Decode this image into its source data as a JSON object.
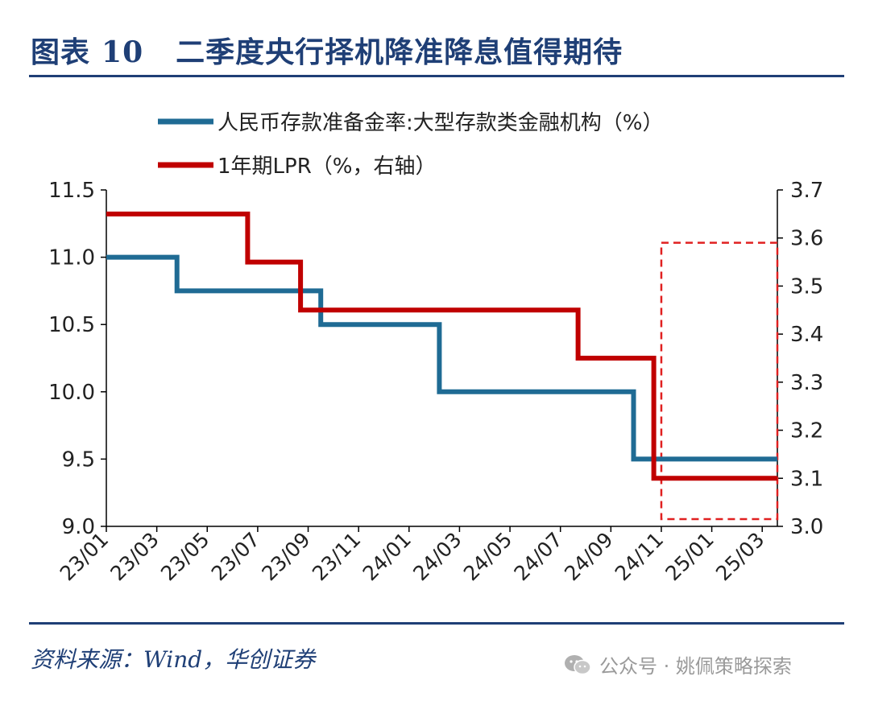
{
  "header": {
    "label": "图表",
    "number": "10",
    "title": "二季度央行择机降准降息值得期待"
  },
  "source": "资料来源：Wind，华创证券",
  "watermark": {
    "text": "公众号 · 姚佩策略探索",
    "icon": "wechat-icon"
  },
  "colors": {
    "brand": "#1f3f76",
    "rrr": "#1f6b94",
    "lpr": "#c00000",
    "highlight": "#e02020"
  },
  "chart_data": {
    "type": "line",
    "step": true,
    "x_ticks": [
      "23/01",
      "23/03",
      "23/05",
      "23/07",
      "23/09",
      "23/11",
      "24/01",
      "24/03",
      "24/05",
      "24/07",
      "24/09",
      "24/11",
      "25/01",
      "25/03"
    ],
    "x_range_months": [
      0,
      26.6
    ],
    "y_left": {
      "ylim": [
        9.0,
        11.5
      ],
      "ticks": [
        "9.0",
        "9.5",
        "10.0",
        "10.5",
        "11.0",
        "11.5"
      ]
    },
    "y_right": {
      "ylim": [
        3.0,
        3.7
      ],
      "ticks": [
        "3.0",
        "3.1",
        "3.2",
        "3.3",
        "3.4",
        "3.5",
        "3.6",
        "3.7"
      ]
    },
    "series": [
      {
        "name": "人民币存款准备金率:大型存款类金融机构（%）",
        "axis": "left",
        "points": [
          [
            0,
            11.0
          ],
          [
            2.8,
            11.0
          ],
          [
            2.8,
            10.75
          ],
          [
            8.5,
            10.75
          ],
          [
            8.5,
            10.5
          ],
          [
            13.2,
            10.5
          ],
          [
            13.2,
            10.0
          ],
          [
            20.9,
            10.0
          ],
          [
            20.9,
            9.5
          ],
          [
            26.6,
            9.5
          ]
        ]
      },
      {
        "name": "1年期LPR（%，右轴）",
        "axis": "right",
        "points": [
          [
            0,
            3.65
          ],
          [
            5.6,
            3.65
          ],
          [
            5.6,
            3.55
          ],
          [
            7.7,
            3.55
          ],
          [
            7.7,
            3.45
          ],
          [
            18.7,
            3.45
          ],
          [
            18.7,
            3.35
          ],
          [
            21.7,
            3.35
          ],
          [
            21.7,
            3.1
          ],
          [
            26.6,
            3.1
          ]
        ]
      }
    ],
    "highlight_box": {
      "x_from": 22.0,
      "x_to": 26.6,
      "y_from_right": 3.015,
      "y_to_right": 3.59
    }
  }
}
